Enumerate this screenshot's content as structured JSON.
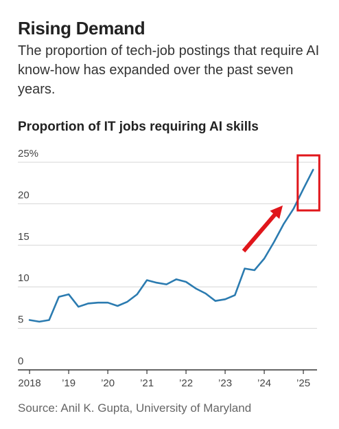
{
  "headline": "Rising Demand",
  "dek": "The proportion of tech-job postings that require AI know-how has expanded over the past seven years.",
  "source": "Source: Anil K. Gupta, University of Maryland",
  "colors": {
    "line": "#2b7bb0",
    "annotation": "#e0161b",
    "grid": "#d6d6d6",
    "axis": "#333333"
  },
  "chart_data": {
    "type": "line",
    "title": "Proportion of IT jobs requiring AI skills",
    "xlabel": "",
    "ylabel": "",
    "ylim": [
      0,
      25
    ],
    "yticks": [
      {
        "value": 0,
        "label": "0"
      },
      {
        "value": 5,
        "label": "5"
      },
      {
        "value": 10,
        "label": "10"
      },
      {
        "value": 15,
        "label": "15"
      },
      {
        "value": 20,
        "label": "20"
      },
      {
        "value": 25,
        "label": "25%"
      }
    ],
    "xticks": [
      {
        "value": 2018.0,
        "label": "2018"
      },
      {
        "value": 2019.0,
        "label": "’19"
      },
      {
        "value": 2020.0,
        "label": "’20"
      },
      {
        "value": 2021.0,
        "label": "’21"
      },
      {
        "value": 2022.0,
        "label": "’22"
      },
      {
        "value": 2023.0,
        "label": "’23"
      },
      {
        "value": 2024.0,
        "label": "’24"
      },
      {
        "value": 2025.0,
        "label": "’25"
      }
    ],
    "xlim": [
      2017.7,
      2025.35
    ],
    "grid": true,
    "series": [
      {
        "x": [
          2018.0,
          2018.25,
          2018.5,
          2018.75,
          2019.0,
          2019.25,
          2019.5,
          2019.75,
          2020.0,
          2020.25,
          2020.5,
          2020.75,
          2021.0,
          2021.25,
          2021.5,
          2021.75,
          2022.0,
          2022.25,
          2022.5,
          2022.75,
          2023.0,
          2023.25,
          2023.5,
          2023.75,
          2024.0,
          2024.25,
          2024.5,
          2024.75,
          2025.0,
          2025.25
        ],
        "values": [
          6.0,
          5.8,
          6.0,
          8.8,
          9.1,
          7.6,
          8.0,
          8.1,
          8.1,
          7.7,
          8.2,
          9.1,
          10.8,
          10.5,
          10.3,
          10.9,
          10.6,
          9.8,
          9.2,
          8.3,
          8.5,
          9.0,
          12.2,
          12.0,
          13.4,
          15.4,
          17.6,
          19.4,
          21.8,
          24.1
        ]
      }
    ],
    "annotations": [
      {
        "type": "arrow",
        "color": "red"
      },
      {
        "type": "highlight-box",
        "color": "red"
      }
    ]
  }
}
